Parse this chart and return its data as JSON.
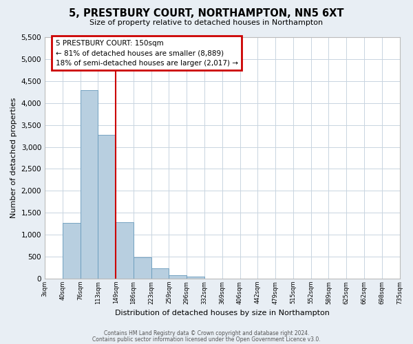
{
  "title": "5, PRESTBURY COURT, NORTHAMPTON, NN5 6XT",
  "subtitle": "Size of property relative to detached houses in Northampton",
  "xlabel": "Distribution of detached houses by size in Northampton",
  "ylabel": "Number of detached properties",
  "bin_labels": [
    "3sqm",
    "40sqm",
    "76sqm",
    "113sqm",
    "149sqm",
    "186sqm",
    "223sqm",
    "259sqm",
    "296sqm",
    "332sqm",
    "369sqm",
    "406sqm",
    "442sqm",
    "479sqm",
    "515sqm",
    "552sqm",
    "589sqm",
    "625sqm",
    "662sqm",
    "698sqm",
    "735sqm"
  ],
  "bar_values": [
    0,
    1270,
    4300,
    3270,
    1280,
    480,
    230,
    80,
    50,
    0,
    0,
    0,
    0,
    0,
    0,
    0,
    0,
    0,
    0,
    0
  ],
  "bar_color": "#b8cfe0",
  "bar_edge_color": "#6699bb",
  "vline_color": "#cc0000",
  "annotation_title": "5 PRESTBURY COURT: 150sqm",
  "annotation_line1": "← 81% of detached houses are smaller (8,889)",
  "annotation_line2": "18% of semi-detached houses are larger (2,017) →",
  "annotation_box_edgecolor": "#cc0000",
  "ylim": [
    0,
    5500
  ],
  "yticks": [
    0,
    500,
    1000,
    1500,
    2000,
    2500,
    3000,
    3500,
    4000,
    4500,
    5000,
    5500
  ],
  "footer1": "Contains HM Land Registry data © Crown copyright and database right 2024.",
  "footer2": "Contains public sector information licensed under the Open Government Licence v3.0.",
  "fig_bg_color": "#e8eef4",
  "plot_bg_color": "#ffffff",
  "grid_color": "#c8d4e0"
}
